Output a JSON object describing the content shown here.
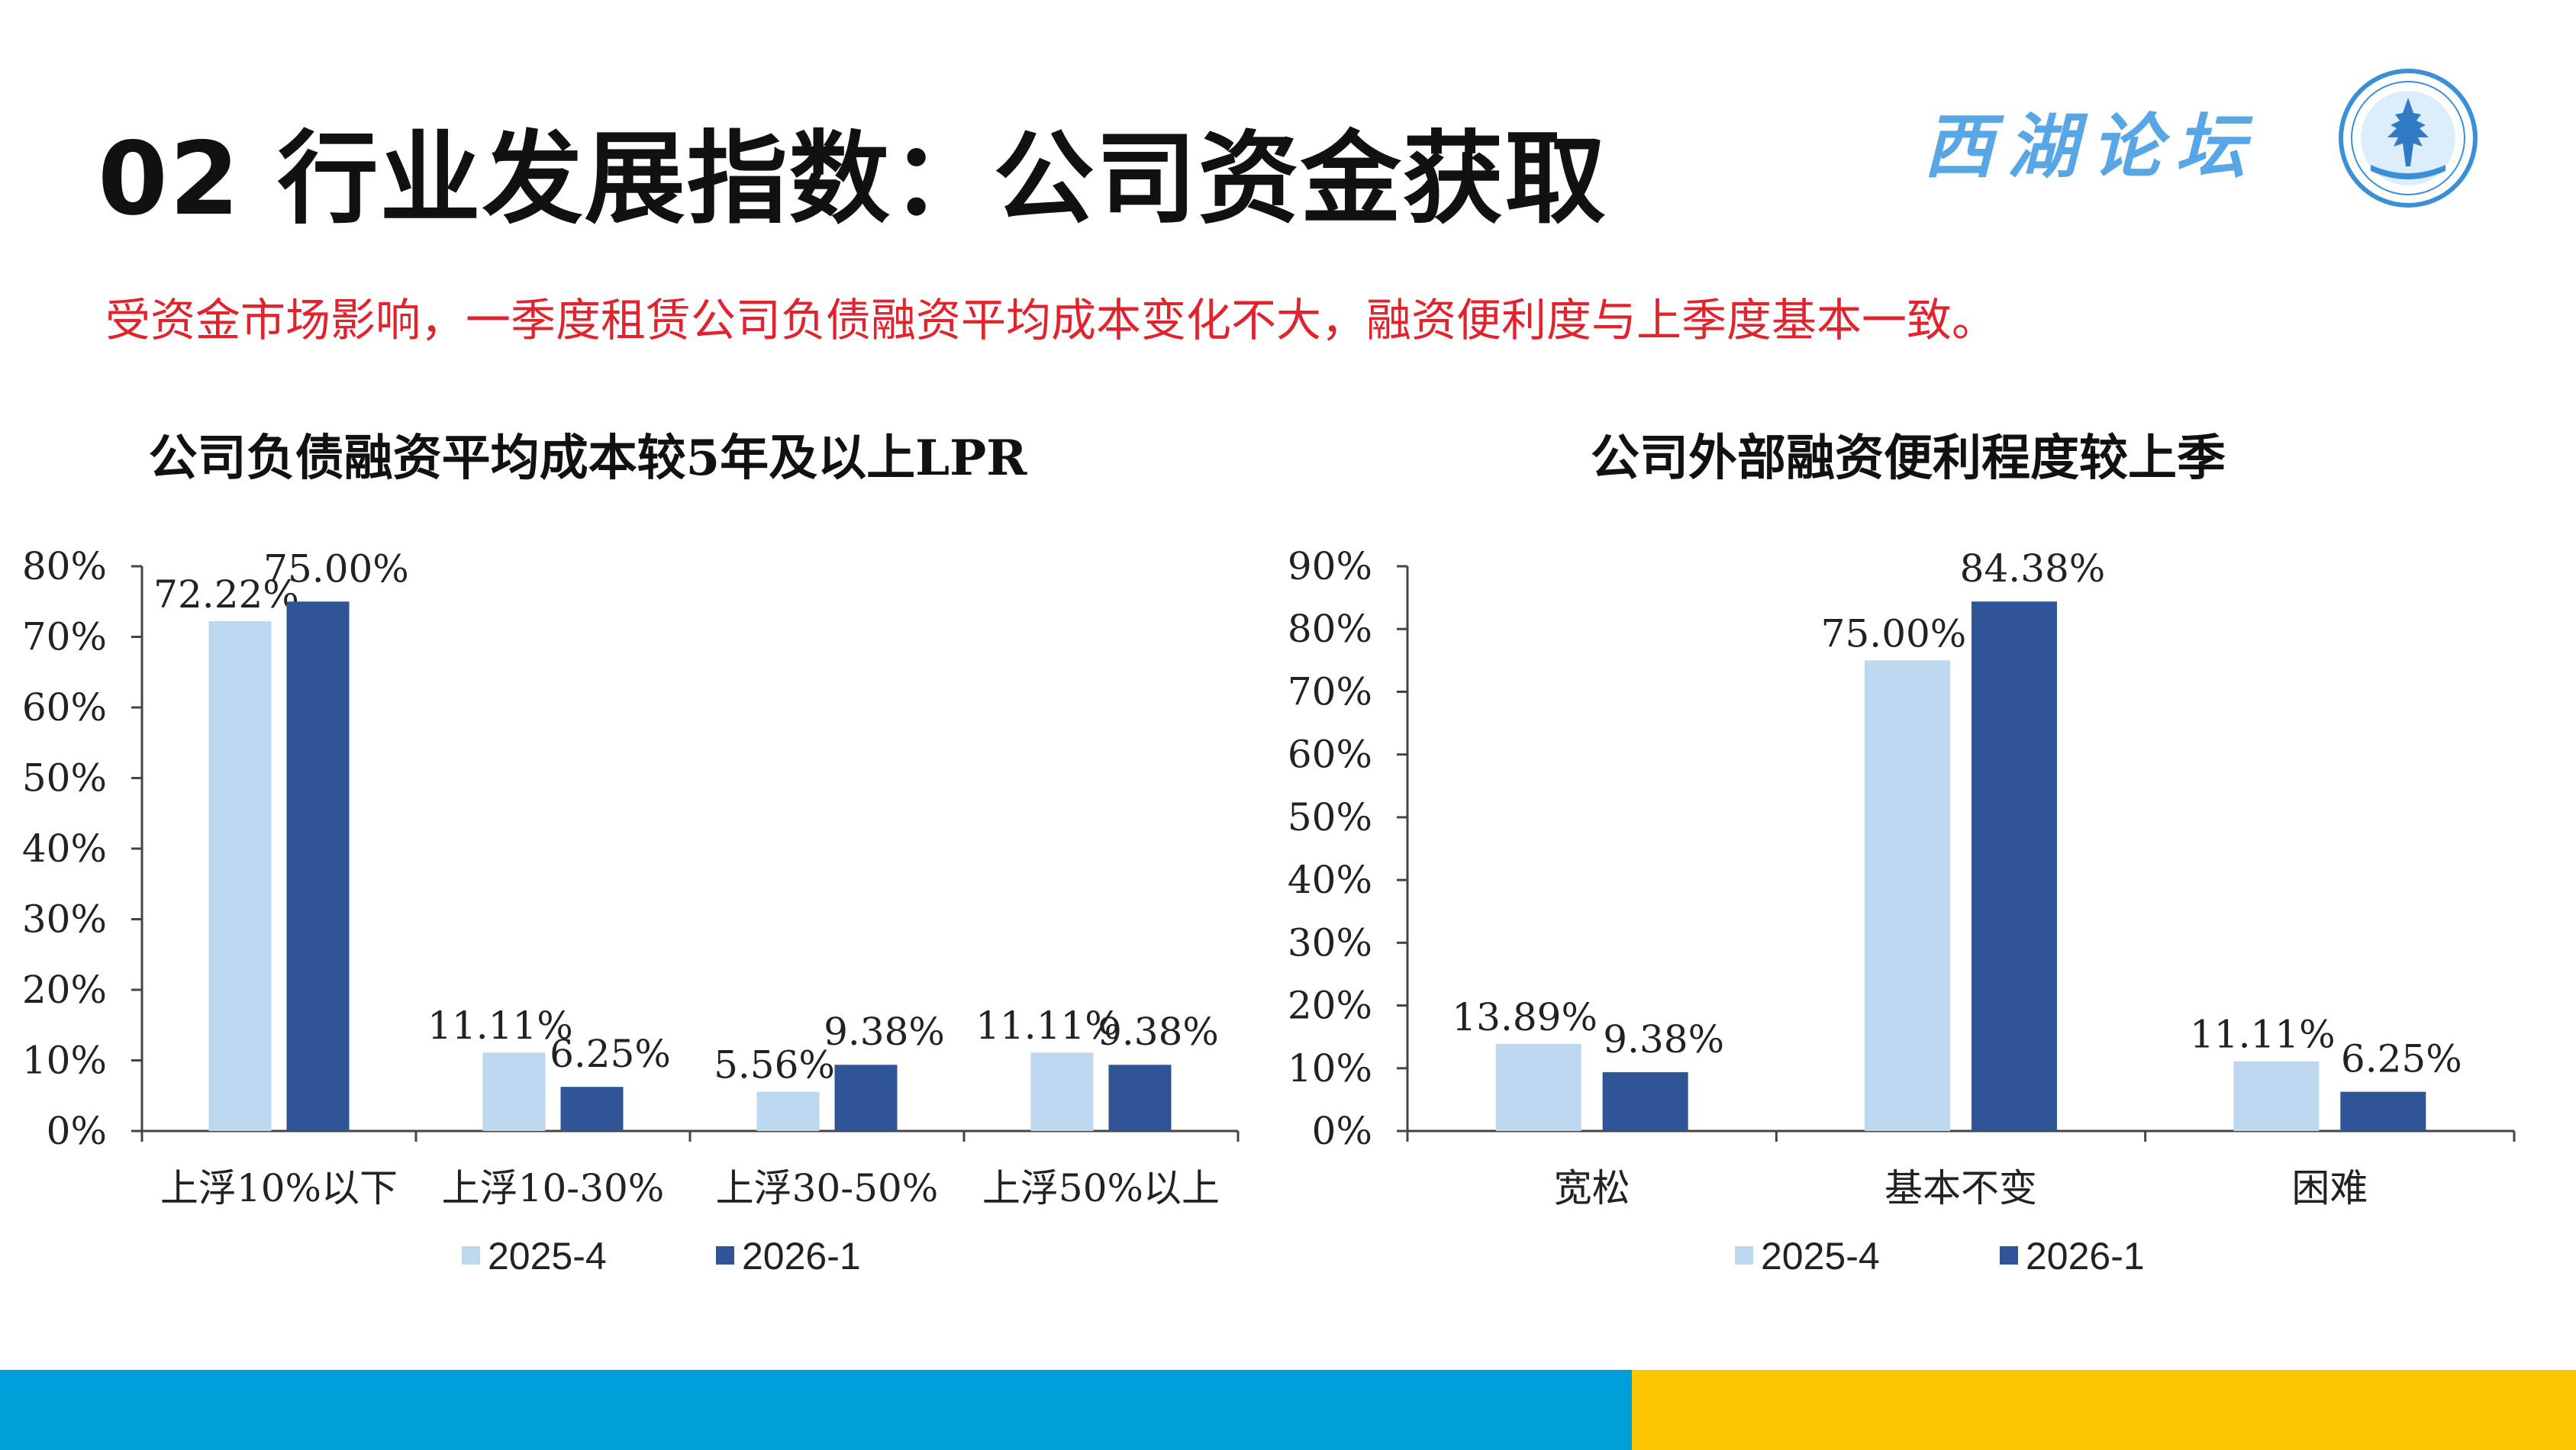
{
  "header": {
    "title": "02 行业发展指数：公司资金获取",
    "logo_text": "西湖论坛"
  },
  "subtitle": "受资金市场影响，一季度租赁公司负债融资平均成本变化不大，融资便利度与上季度基本一致。",
  "colors": {
    "series_light": "#bdd7ee",
    "series_dark": "#2f5597",
    "footer_blue": "#009edb",
    "footer_yellow": "#fcc700",
    "subtitle": "#e0232c",
    "logo": "#57a6e6"
  },
  "chart_data": [
    {
      "type": "bar",
      "title": "公司负债融资平均成本较5年及以上LPR",
      "categories": [
        "上浮10%以下",
        "上浮10-30%",
        "上浮30-50%",
        "上浮50%以上"
      ],
      "series": [
        {
          "name": "2025-4",
          "values": [
            72.22,
            11.11,
            5.56,
            11.11
          ],
          "labels": [
            "72.22%",
            "11.11%",
            "5.56%",
            "11.11%"
          ]
        },
        {
          "name": "2026-1",
          "values": [
            75.0,
            6.25,
            9.38,
            9.38
          ],
          "labels": [
            "75.00%",
            "6.25%",
            "9.38%",
            "9.38%"
          ]
        }
      ],
      "ylim": [
        0,
        80
      ],
      "yticks": [
        "0%",
        "10%",
        "20%",
        "30%",
        "40%",
        "50%",
        "60%",
        "70%",
        "80%"
      ],
      "grid": false,
      "legend": "bottom"
    },
    {
      "type": "bar",
      "title": "公司外部融资便利程度较上季",
      "categories": [
        "宽松",
        "基本不变",
        "困难"
      ],
      "series": [
        {
          "name": "2025-4",
          "values": [
            13.89,
            75.0,
            11.11
          ],
          "labels": [
            "13.89%",
            "75.00%",
            "11.11%"
          ]
        },
        {
          "name": "2026-1",
          "values": [
            9.38,
            84.38,
            6.25
          ],
          "labels": [
            "9.38%",
            "84.38%",
            "6.25%"
          ]
        }
      ],
      "ylim": [
        0,
        90
      ],
      "yticks": [
        "0%",
        "10%",
        "20%",
        "30%",
        "40%",
        "50%",
        "60%",
        "70%",
        "80%",
        "90%"
      ],
      "grid": false,
      "legend": "bottom"
    }
  ]
}
